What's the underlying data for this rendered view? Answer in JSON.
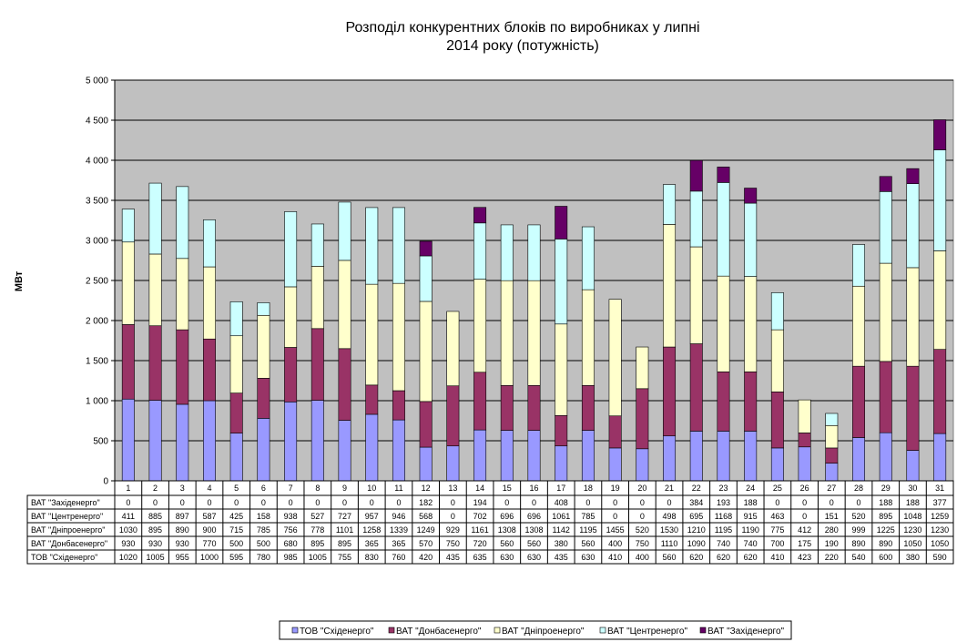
{
  "chart_data": {
    "type": "bar",
    "stacked": true,
    "title_lines": [
      "Розподіл конкурентних  блоків по виробниках  у липні",
      "2014 року  (потужність)"
    ],
    "ylabel": "МВт",
    "ylim": [
      0,
      5000
    ],
    "yticks": [
      0,
      500,
      1000,
      1500,
      2000,
      2500,
      3000,
      3500,
      4000,
      4500,
      5000
    ],
    "ytick_labels": [
      "0",
      "500",
      "1 000",
      "1 500",
      "2 000",
      "2 500",
      "3 000",
      "3 500",
      "4 000",
      "4 500",
      "5 000"
    ],
    "grid": true,
    "plot_background": "#c0c0c0",
    "legend_position": "bottom",
    "categories": [
      "1",
      "2",
      "3",
      "4",
      "5",
      "6",
      "7",
      "8",
      "9",
      "10",
      "11",
      "12",
      "13",
      "14",
      "15",
      "16",
      "17",
      "18",
      "19",
      "20",
      "21",
      "22",
      "23",
      "24",
      "25",
      "26",
      "27",
      "28",
      "29",
      "30",
      "31"
    ],
    "series": [
      {
        "name": "ТОВ \"Східенерго\"",
        "color": "#9999ff",
        "values": [
          1020,
          1005,
          955,
          1000,
          595,
          780,
          985,
          1005,
          755,
          830,
          760,
          420,
          435,
          635,
          630,
          630,
          435,
          630,
          410,
          400,
          560,
          620,
          620,
          620,
          410,
          423,
          220,
          540,
          600,
          380,
          590
        ]
      },
      {
        "name": "ВАТ \"Донбасенерго\"",
        "color": "#993366",
        "values": [
          930,
          930,
          930,
          770,
          500,
          500,
          680,
          895,
          895,
          365,
          365,
          570,
          750,
          720,
          560,
          560,
          380,
          560,
          400,
          750,
          1110,
          1090,
          740,
          740,
          700,
          175,
          190,
          890,
          890,
          1050,
          1050
        ]
      },
      {
        "name": "ВАТ \"Дніпроенерго\"",
        "color": "#ffffcc",
        "values": [
          1030,
          895,
          890,
          900,
          715,
          785,
          756,
          778,
          1101,
          1258,
          1339,
          1249,
          929,
          1161,
          1308,
          1308,
          1142,
          1195,
          1455,
          520,
          1530,
          1210,
          1195,
          1190,
          775,
          412,
          280,
          999,
          1225,
          1230,
          1230
        ]
      },
      {
        "name": "ВАТ \"Центренерго\"",
        "color": "#ccffff",
        "values": [
          411,
          885,
          897,
          587,
          425,
          158,
          938,
          527,
          727,
          957,
          946,
          568,
          0,
          702,
          696,
          696,
          1061,
          785,
          0,
          0,
          498,
          695,
          1168,
          915,
          463,
          0,
          151,
          520,
          895,
          1048,
          1259
        ]
      },
      {
        "name": "ВАТ \"Західенерго\"",
        "color": "#660066",
        "values": [
          0,
          0,
          0,
          0,
          0,
          0,
          0,
          0,
          0,
          0,
          0,
          182,
          0,
          194,
          0,
          0,
          408,
          0,
          0,
          0,
          0,
          384,
          193,
          188,
          0,
          0,
          0,
          0,
          188,
          188,
          377
        ]
      }
    ],
    "table_row_order": [
      4,
      3,
      2,
      1,
      0
    ]
  }
}
